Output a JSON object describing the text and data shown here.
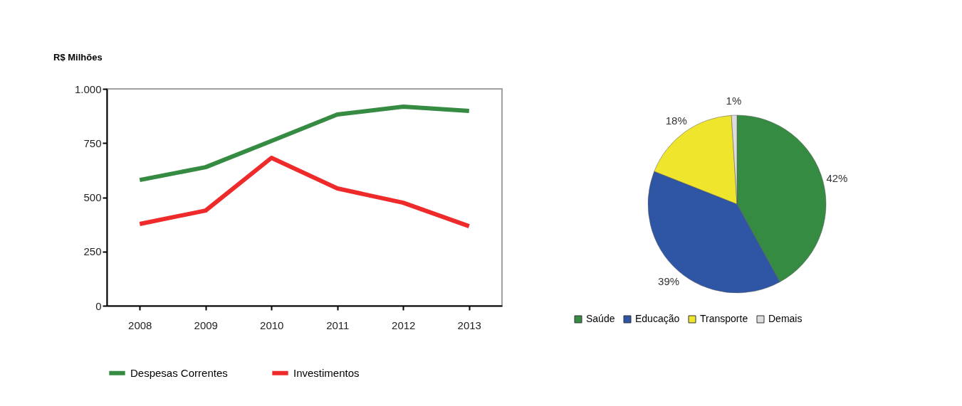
{
  "chart_data": [
    {
      "type": "line",
      "ylabel": "R$ Milhões",
      "categories": [
        "2008",
        "2009",
        "2010",
        "2011",
        "2012",
        "2013"
      ],
      "series": [
        {
          "name": "Despesas Correntes",
          "color": "#368b43",
          "values": [
            580,
            639,
            760,
            882,
            918,
            898
          ]
        },
        {
          "name": "Investimentos",
          "color": "#ee2a2a",
          "values": [
            377,
            439,
            682,
            541,
            475,
            367
          ]
        }
      ],
      "ylim": [
        0,
        1000
      ],
      "yticks": [
        0,
        250,
        500,
        750,
        {
          "value": 1000,
          "label": "1.000"
        }
      ],
      "grid": false,
      "legend": "bottom",
      "marker": "none",
      "line_style": "solid"
    },
    {
      "type": "pie",
      "categories": [
        "Saúde",
        "Educação",
        "Transporte",
        "Demais"
      ],
      "values": [
        42,
        39,
        18,
        1
      ],
      "colors": [
        "#368b43",
        "#2f55a5",
        "#f0e52d",
        "#dcdcdc"
      ],
      "value_labels": [
        "42%",
        "39%",
        "18%",
        "1%"
      ],
      "legend": "bottom"
    }
  ]
}
